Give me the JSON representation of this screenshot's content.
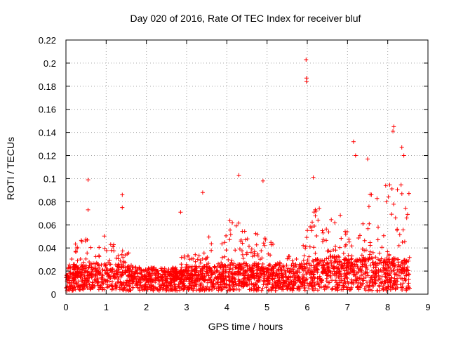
{
  "chart_data": {
    "type": "scatter",
    "title": "Day 020 of 2016, Rate Of TEC Index for receiver bluf",
    "xlabel": "GPS time / hours",
    "ylabel": "ROTI / TECUs",
    "xlim": [
      0,
      9
    ],
    "ylim": [
      0,
      0.22
    ],
    "x_ticks": [
      0,
      1,
      2,
      3,
      4,
      5,
      6,
      7,
      8,
      9
    ],
    "y_ticks": [
      0,
      0.02,
      0.04,
      0.06,
      0.08,
      0.1,
      0.12,
      0.14,
      0.16,
      0.18,
      0.2,
      0.22
    ],
    "x_tick_labels": [
      "0",
      "1",
      "2",
      "3",
      "4",
      "5",
      "6",
      "7",
      "8",
      "9"
    ],
    "y_tick_labels": [
      "0",
      "0.02",
      "0.04",
      "0.06",
      "0.08",
      "0.1",
      "0.12",
      "0.14",
      "0.16",
      "0.18",
      "0.2",
      "0.22"
    ],
    "grid": true,
    "marker": "+",
    "color": "#ff0000",
    "series": [
      {
        "name": "ROTI",
        "x_range": [
          0,
          8.55
        ],
        "notable_points": [
          {
            "x": 0.55,
            "y": 0.099
          },
          {
            "x": 0.55,
            "y": 0.073
          },
          {
            "x": 1.4,
            "y": 0.086
          },
          {
            "x": 1.4,
            "y": 0.075
          },
          {
            "x": 2.85,
            "y": 0.071
          },
          {
            "x": 3.4,
            "y": 0.088
          },
          {
            "x": 4.3,
            "y": 0.103
          },
          {
            "x": 4.9,
            "y": 0.098
          },
          {
            "x": 5.97,
            "y": 0.203
          },
          {
            "x": 5.98,
            "y": 0.187
          },
          {
            "x": 5.98,
            "y": 0.184
          },
          {
            "x": 6.15,
            "y": 0.101
          },
          {
            "x": 7.15,
            "y": 0.132
          },
          {
            "x": 7.2,
            "y": 0.12
          },
          {
            "x": 7.5,
            "y": 0.117
          },
          {
            "x": 8.15,
            "y": 0.145
          },
          {
            "x": 8.13,
            "y": 0.141
          },
          {
            "x": 8.35,
            "y": 0.127
          },
          {
            "x": 8.4,
            "y": 0.12
          }
        ],
        "envelope": [
          [
            0.0,
            0.02,
            0.012
          ],
          [
            0.25,
            0.045,
            0.014
          ],
          [
            0.5,
            0.05,
            0.015
          ],
          [
            0.75,
            0.035,
            0.016
          ],
          [
            1.0,
            0.055,
            0.017
          ],
          [
            1.25,
            0.04,
            0.015
          ],
          [
            1.5,
            0.04,
            0.015
          ],
          [
            1.75,
            0.025,
            0.014
          ],
          [
            2.0,
            0.02,
            0.012
          ],
          [
            2.25,
            0.02,
            0.012
          ],
          [
            2.5,
            0.02,
            0.012
          ],
          [
            2.75,
            0.025,
            0.012
          ],
          [
            3.0,
            0.04,
            0.013
          ],
          [
            3.25,
            0.035,
            0.013
          ],
          [
            3.5,
            0.06,
            0.014
          ],
          [
            3.75,
            0.04,
            0.014
          ],
          [
            4.0,
            0.06,
            0.015
          ],
          [
            4.25,
            0.08,
            0.016
          ],
          [
            4.5,
            0.055,
            0.016
          ],
          [
            4.75,
            0.055,
            0.016
          ],
          [
            5.0,
            0.06,
            0.016
          ],
          [
            5.25,
            0.035,
            0.015
          ],
          [
            5.5,
            0.035,
            0.014
          ],
          [
            5.75,
            0.03,
            0.014
          ],
          [
            6.0,
            0.055,
            0.016
          ],
          [
            6.25,
            0.08,
            0.02
          ],
          [
            6.5,
            0.08,
            0.022
          ],
          [
            6.75,
            0.075,
            0.022
          ],
          [
            7.0,
            0.06,
            0.02
          ],
          [
            7.25,
            0.045,
            0.02
          ],
          [
            7.5,
            0.09,
            0.022
          ],
          [
            7.75,
            0.085,
            0.022
          ],
          [
            8.0,
            0.1,
            0.02
          ],
          [
            8.25,
            0.11,
            0.02
          ],
          [
            8.5,
            0.095,
            0.018
          ]
        ]
      }
    ]
  }
}
